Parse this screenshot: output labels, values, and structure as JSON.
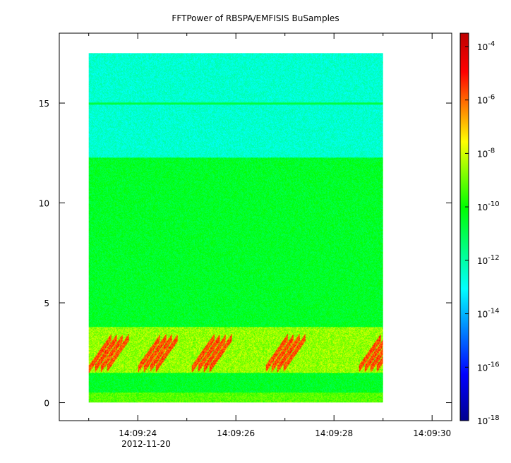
{
  "chart_data": {
    "type": "heatmap",
    "title": "FFTPower of RBSPA/EMFISIS  BuSamples",
    "xlabel": "",
    "ylabel": "",
    "x_date_label": "2012-11-20",
    "x_ticks": [
      "14:09:24",
      "14:09:26",
      "14:09:28",
      "14:09:30"
    ],
    "x_tick_seconds": [
      24,
      26,
      28,
      30
    ],
    "xlim_seconds": [
      22.4,
      30.4
    ],
    "data_x_seconds": [
      23.0,
      29.0
    ],
    "y_ticks": [
      0,
      5,
      10,
      15
    ],
    "ylim": [
      -0.9,
      18.5
    ],
    "data_y_range": [
      0,
      17.5
    ],
    "colorbar": {
      "scale": "log",
      "range": [
        "1e-18",
        "3e-4"
      ],
      "tick_labels": [
        "10",
        "10",
        "10",
        "10",
        "10",
        "10",
        "10",
        "10"
      ],
      "tick_exponents": [
        "-4",
        "-6",
        "-8",
        "-10",
        "-12",
        "-14",
        "-16",
        "-18"
      ],
      "tick_log_values": [
        -4,
        -6,
        -8,
        -10,
        -12,
        -14,
        -16,
        -18
      ],
      "colormap": [
        "#00008f",
        "#0000ff",
        "#00ffff",
        "#00ff00",
        "#ffff00",
        "#ff0000",
        "#c00000"
      ]
    },
    "features": {
      "background_upper_band_log_power": -12.5,
      "upper_band_start_y": 12.3,
      "line_at_y": 15.0,
      "mid_band_log_power": -10.5,
      "emission_band_y": [
        1.5,
        3.8
      ],
      "emission_peak_log_power": -5,
      "bursts_start_seconds": [
        23.0,
        24.0,
        25.1,
        26.6,
        28.5
      ]
    }
  }
}
